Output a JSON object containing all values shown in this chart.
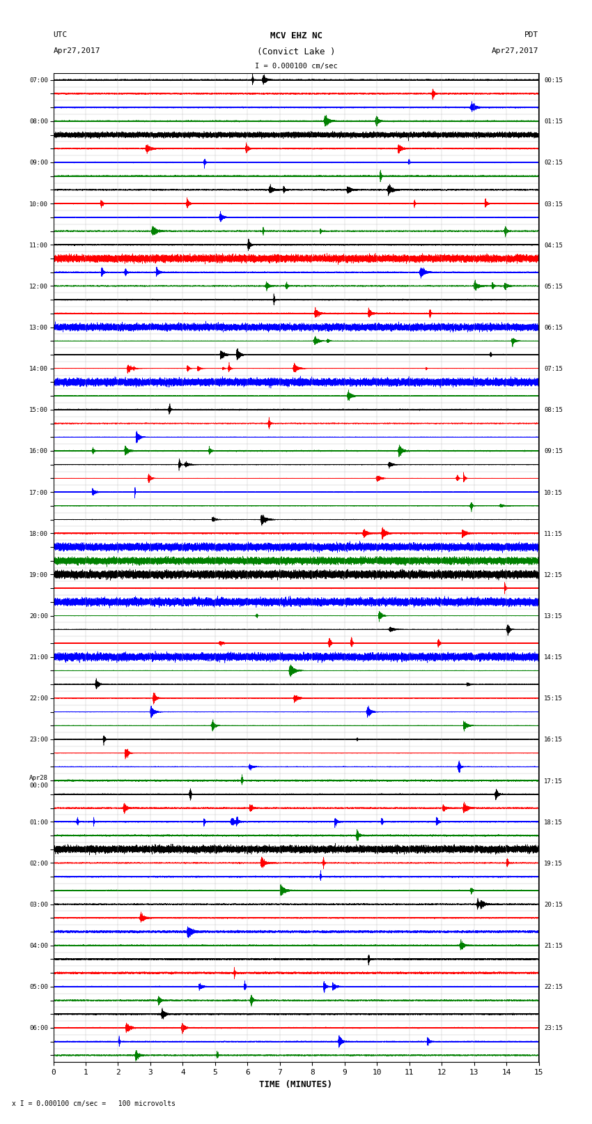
{
  "title_line1": "MCV EHZ NC",
  "title_line2": "(Convict Lake )",
  "scale_label": "I = 0.000100 cm/sec",
  "utc_label": "UTC",
  "utc_date": "Apr27,2017",
  "pdt_label": "PDT",
  "pdt_date": "Apr27,2017",
  "xlabel": "TIME (MINUTES)",
  "footer": "x I = 0.000100 cm/sec =   100 microvolts",
  "left_times": [
    "07:00",
    "",
    "",
    "08:00",
    "",
    "",
    "09:00",
    "",
    "",
    "10:00",
    "",
    "",
    "11:00",
    "",
    "",
    "12:00",
    "",
    "",
    "13:00",
    "",
    "",
    "14:00",
    "",
    "",
    "15:00",
    "",
    "",
    "16:00",
    "",
    "",
    "17:00",
    "",
    "",
    "18:00",
    "",
    "",
    "19:00",
    "",
    "",
    "20:00",
    "",
    "",
    "21:00",
    "",
    "",
    "22:00",
    "",
    "",
    "23:00",
    "",
    "",
    "Apr28\n00:00",
    "",
    "",
    "01:00",
    "",
    "",
    "02:00",
    "",
    "",
    "03:00",
    "",
    "",
    "04:00",
    "",
    "",
    "05:00",
    "",
    "",
    "06:00",
    "",
    ""
  ],
  "right_times": [
    "00:15",
    "",
    "",
    "01:15",
    "",
    "",
    "02:15",
    "",
    "",
    "03:15",
    "",
    "",
    "04:15",
    "",
    "",
    "05:15",
    "",
    "",
    "06:15",
    "",
    "",
    "07:15",
    "",
    "",
    "08:15",
    "",
    "",
    "09:15",
    "",
    "",
    "10:15",
    "",
    "",
    "11:15",
    "",
    "",
    "12:15",
    "",
    "",
    "13:15",
    "",
    "",
    "14:15",
    "",
    "",
    "15:15",
    "",
    "",
    "16:15",
    "",
    "",
    "17:15",
    "",
    "",
    "18:15",
    "",
    "",
    "19:15",
    "",
    "",
    "20:15",
    "",
    "",
    "21:15",
    "",
    "",
    "22:15",
    "",
    "",
    "23:15",
    "",
    ""
  ],
  "colors": [
    "black",
    "red",
    "blue",
    "green"
  ],
  "n_traces": 72,
  "trace_duration_minutes": 15,
  "sample_rate": 50,
  "background_color": "white",
  "grid_color": "#aaaaaa",
  "fig_width": 8.5,
  "fig_height": 16.13
}
